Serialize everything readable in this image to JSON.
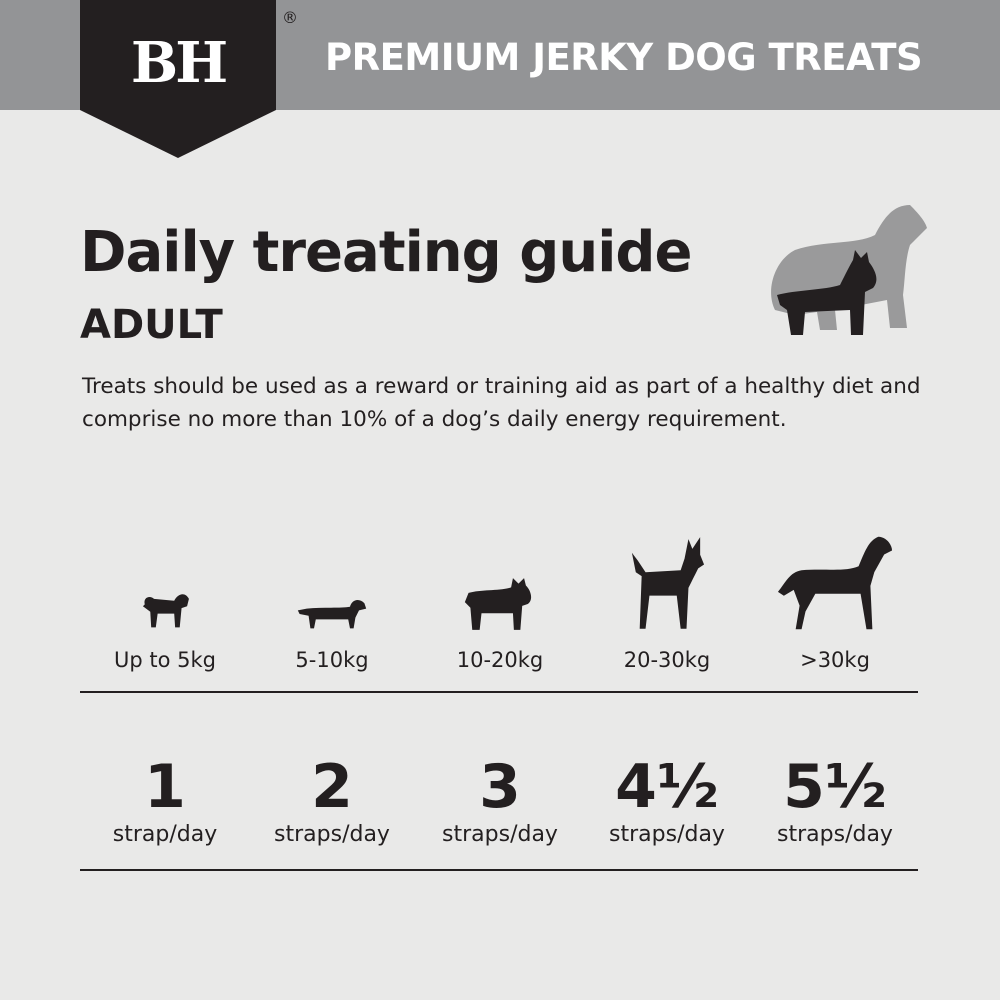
{
  "header": {
    "logo": "BH",
    "registered": "®",
    "tagline": "PREMIUM JERKY DOG TREATS",
    "band_color": "#939496",
    "logo_color": "#231f20"
  },
  "title": "Daily treating guide",
  "subtitle": "ADULT",
  "description": "Treats should be used as a reward or training aid as part of a healthy diet and comprise no more than 10% of a dog’s daily energy requirement.",
  "guide": [
    {
      "icon": "small-dog-icon",
      "weight": "Up to 5kg",
      "amount": "1",
      "unit": "strap/day"
    },
    {
      "icon": "dachshund-icon",
      "weight": "5-10kg",
      "amount": "2",
      "unit": "straps/day"
    },
    {
      "icon": "bulldog-icon",
      "weight": "10-20kg",
      "amount": "3",
      "unit": "straps/day"
    },
    {
      "icon": "terrier-icon",
      "weight": "20-30kg",
      "amount": "4½",
      "unit": "straps/day"
    },
    {
      "icon": "great-dane-icon",
      "weight": ">30kg",
      "amount": "5½",
      "unit": "straps/day"
    }
  ]
}
